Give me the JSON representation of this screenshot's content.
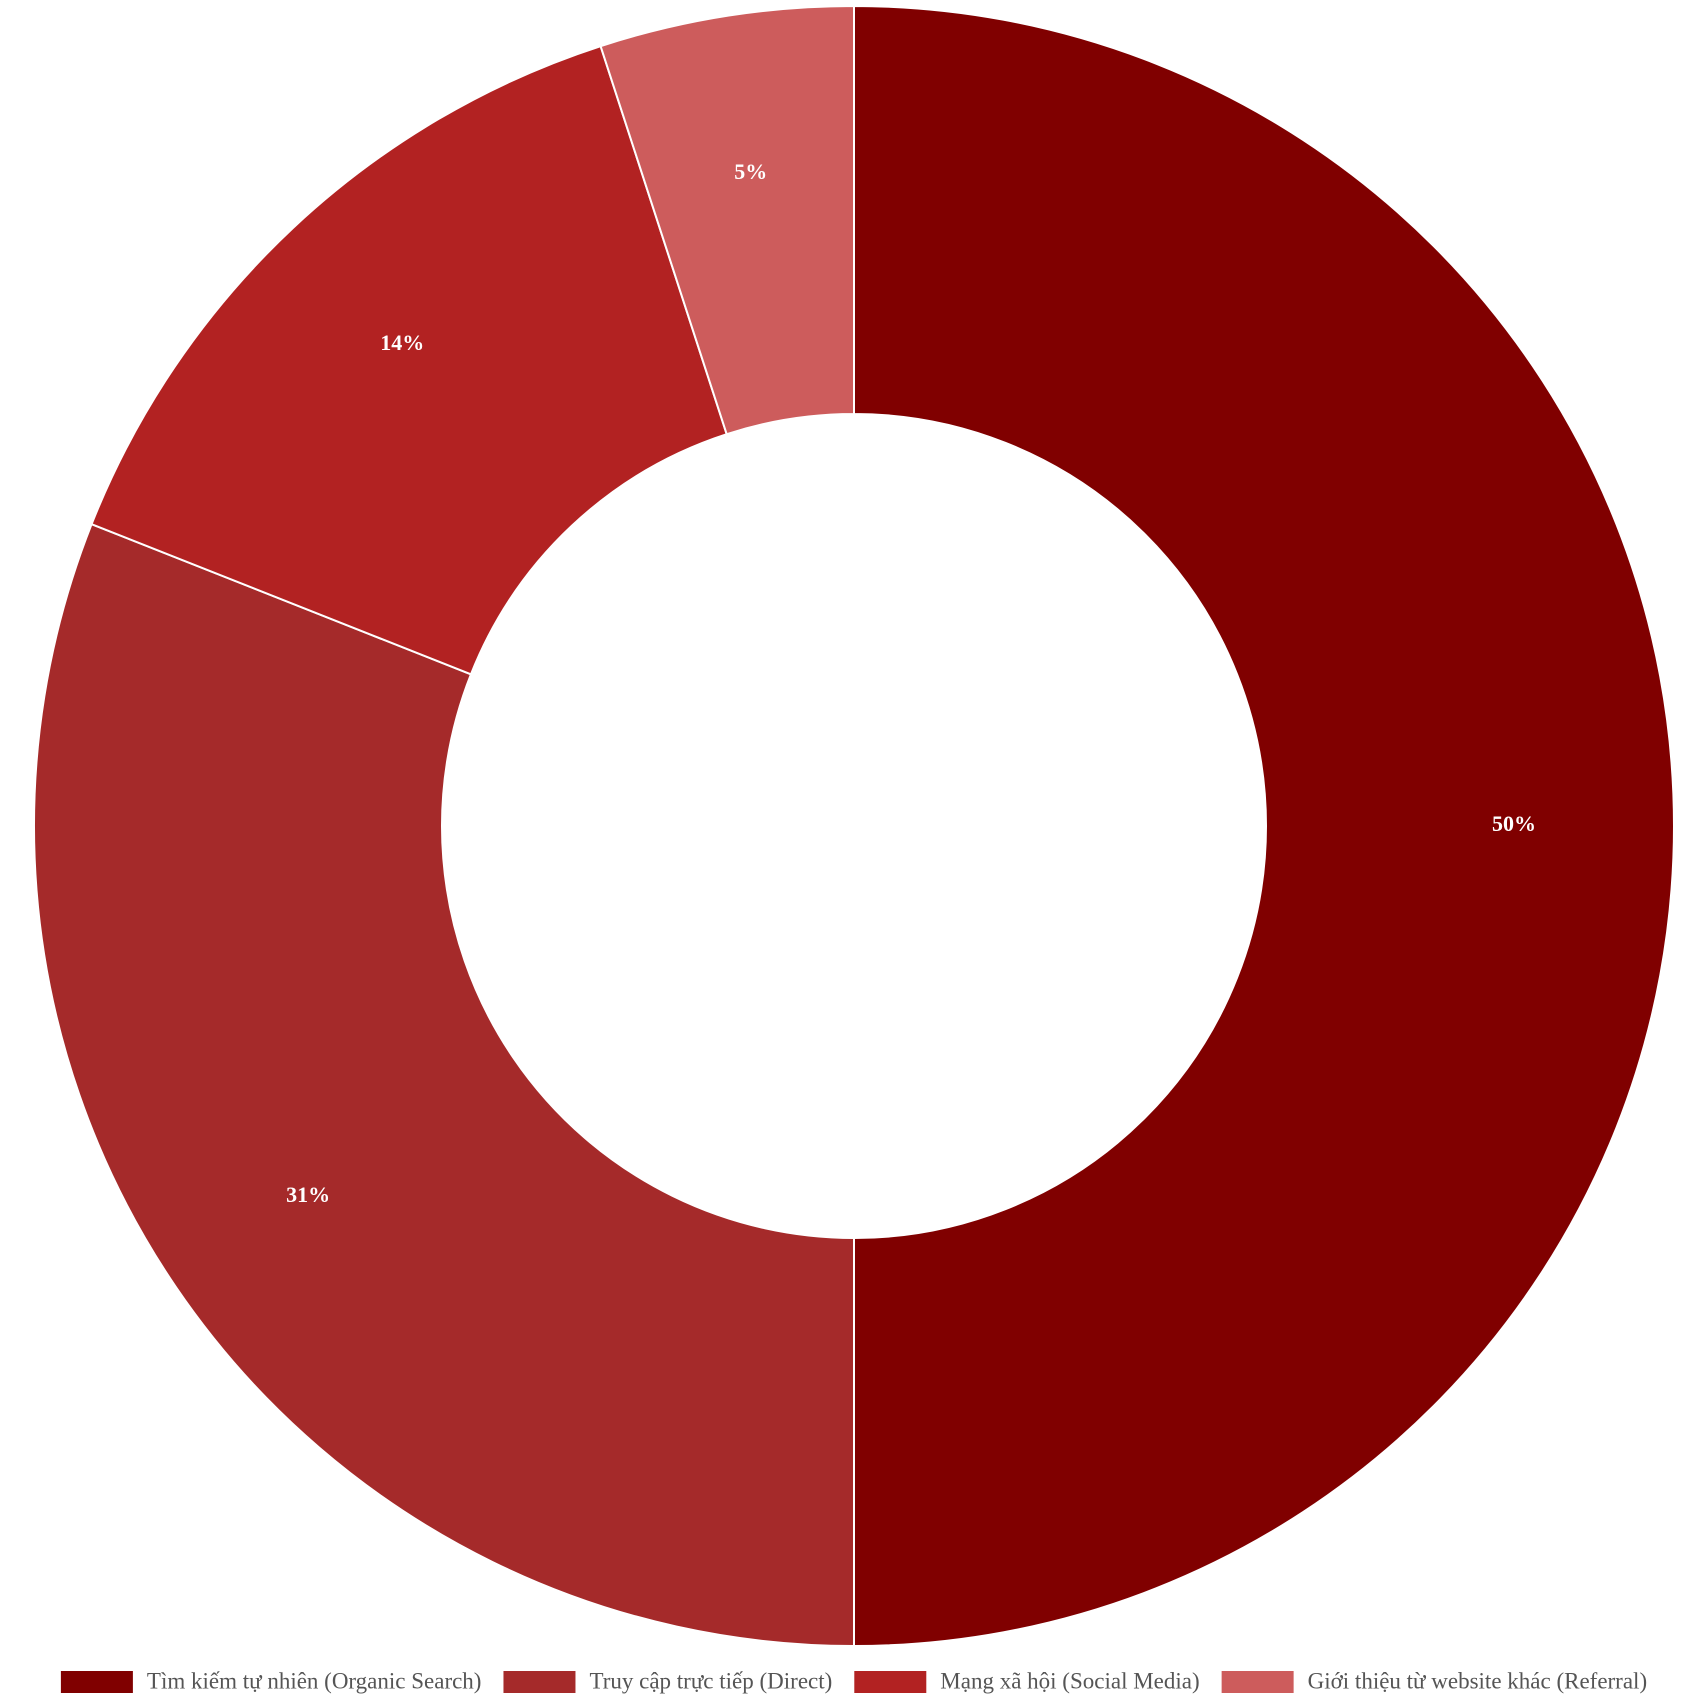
{
  "chart_data": {
    "type": "pie",
    "donut": true,
    "categories": [
      "Tìm kiếm tự nhiên (Organic Search)",
      "Truy cập trực tiếp (Direct)",
      "Mạng xã hội (Social Media)",
      "Giới thiệu từ website khác (Referral)"
    ],
    "values": [
      50,
      31,
      14,
      5
    ],
    "labels": [
      "50%",
      "31%",
      "14%",
      "5%"
    ],
    "colors": [
      "#800000",
      "#a52a2a",
      "#b22222",
      "#cd5c5c"
    ],
    "legend_position": "bottom",
    "title": ""
  }
}
